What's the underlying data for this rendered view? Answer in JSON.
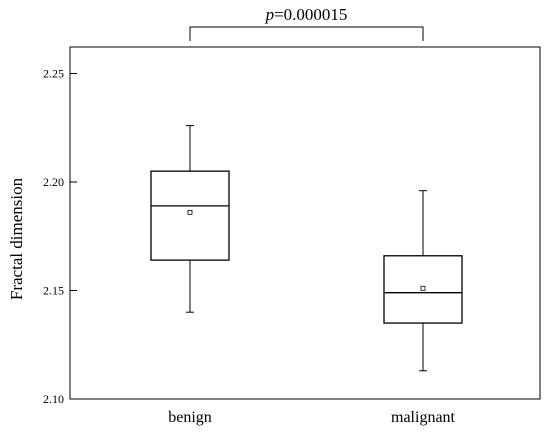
{
  "chart_data": {
    "type": "box",
    "ylabel": "Fractal dimension",
    "ylim": [
      2.1,
      2.26
    ],
    "yticks": [
      "2.10",
      "2.15",
      "2.20",
      "2.25"
    ],
    "categories": [
      "benign",
      "malignant"
    ],
    "boxes": [
      {
        "category": "benign",
        "whisker_low": 2.14,
        "q1": 2.164,
        "median": 2.189,
        "q3": 2.205,
        "whisker_high": 2.226,
        "mean": 2.186
      },
      {
        "category": "malignant",
        "whisker_low": 2.113,
        "q1": 2.135,
        "median": 2.149,
        "q3": 2.166,
        "whisker_high": 2.196,
        "mean": 2.151
      }
    ],
    "significance": {
      "italic_part": "p",
      "value_text": "=0.000015",
      "between": [
        "benign",
        "malignant"
      ]
    }
  }
}
